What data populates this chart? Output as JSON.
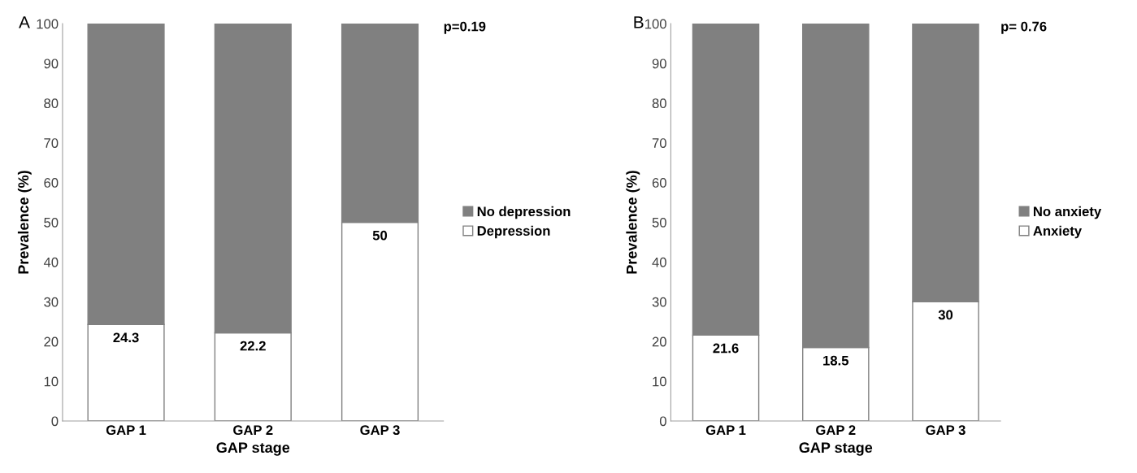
{
  "chart_data": [
    {
      "type": "bar",
      "title": "A",
      "xlabel": "GAP stage",
      "ylabel": "Prevalence (%)",
      "categories": [
        "GAP 1",
        "GAP 2",
        "GAP 3"
      ],
      "stacked": true,
      "series": [
        {
          "name": "Depression",
          "color": "#ffffff",
          "values": [
            24.3,
            22.2,
            50
          ],
          "value_labels": [
            "24.3",
            "22.2",
            "50"
          ]
        },
        {
          "name": "No depression",
          "color": "#808080",
          "values": [
            75.7,
            77.8,
            50
          ]
        }
      ],
      "ylim": [
        0,
        100
      ],
      "yticks": [
        0,
        10,
        20,
        30,
        40,
        50,
        60,
        70,
        80,
        90,
        100
      ],
      "grid": false,
      "legend": "right",
      "annotations": [
        "p=0.19"
      ]
    },
    {
      "type": "bar",
      "title": "B",
      "xlabel": "GAP stage",
      "ylabel": "Prevalence (%)",
      "categories": [
        "GAP 1",
        "GAP 2",
        "GAP 3"
      ],
      "stacked": true,
      "series": [
        {
          "name": "Anxiety",
          "color": "#ffffff",
          "values": [
            21.6,
            18.5,
            30
          ],
          "value_labels": [
            "21.6",
            "18.5",
            "30"
          ]
        },
        {
          "name": "No anxiety",
          "color": "#808080",
          "values": [
            78.4,
            81.5,
            70
          ]
        }
      ],
      "ylim": [
        0,
        100
      ],
      "yticks": [
        0,
        10,
        20,
        30,
        40,
        50,
        60,
        70,
        80,
        90,
        100
      ],
      "grid": false,
      "legend": "right",
      "annotations": [
        "p= 0.76"
      ]
    }
  ]
}
